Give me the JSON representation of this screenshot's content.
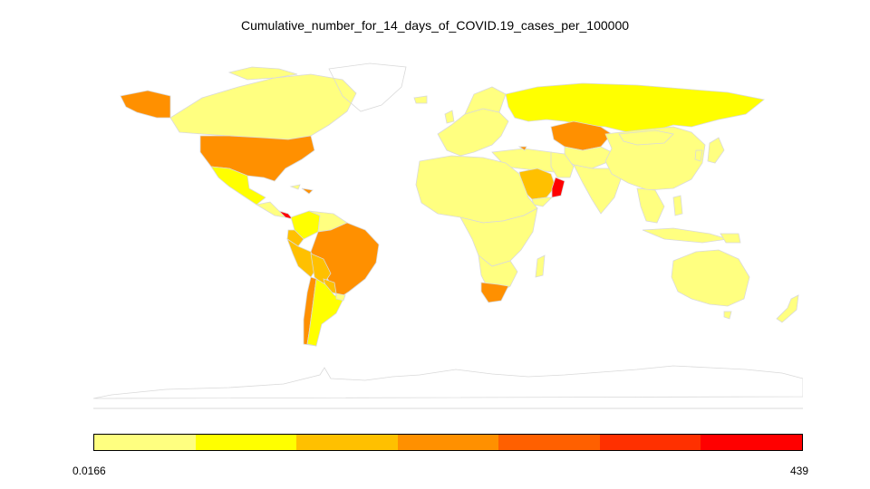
{
  "title": "Cumulative_number_for_14_days_of_COVID.19_cases_per_100000",
  "legend": {
    "min_label": "0.0166",
    "max_label": "439",
    "colors": [
      "#ffff80",
      "#ffff00",
      "#ffc000",
      "#ff9000",
      "#ff6000",
      "#ff3000",
      "#ff0000"
    ]
  },
  "map_colors": {
    "base": "#ffff80",
    "ocean": "#ffffff",
    "outline": "#d9d9d9",
    "antarctica": "#ffffff",
    "yellow": "#ffff00",
    "light_orange": "#ffc000",
    "orange": "#ff9000",
    "dark_orange": "#ff6000",
    "red": "#ff0000"
  }
}
